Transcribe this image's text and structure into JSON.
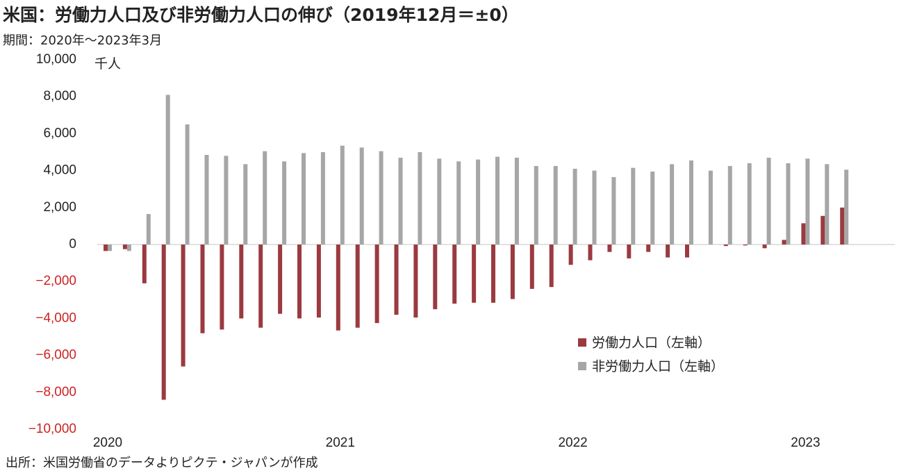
{
  "title": "米国：労働力人口及び非労働力人口の伸び（2019年12月＝±0）",
  "subtitle": "期間：2020年～2023年3月",
  "source": "出所：米国労働省のデータよりピクテ・ジャパンが作成",
  "colors": {
    "labor": "#9b3a40",
    "nonlabor": "#a6a6a6",
    "negative_tick": "#cc2222"
  },
  "chart_data": {
    "type": "bar",
    "unit_label": "千人",
    "ylim": [
      -10000,
      10000
    ],
    "yticks": [
      10000,
      8000,
      6000,
      4000,
      2000,
      0,
      -2000,
      -4000,
      -6000,
      -8000,
      -10000
    ],
    "ytick_labels": [
      "10,000",
      "8,000",
      "6,000",
      "4,000",
      "2,000",
      "0",
      "−2,000",
      "−4,000",
      "−6,000",
      "−8,000",
      "−10,000"
    ],
    "xtick_labels": [
      "2020",
      "2021",
      "2022",
      "2023"
    ],
    "legend_position": "lower-right",
    "categories": [
      "2020-01",
      "2020-02",
      "2020-03",
      "2020-04",
      "2020-05",
      "2020-06",
      "2020-07",
      "2020-08",
      "2020-09",
      "2020-10",
      "2020-11",
      "2020-12",
      "2021-01",
      "2021-02",
      "2021-03",
      "2021-04",
      "2021-05",
      "2021-06",
      "2021-07",
      "2021-08",
      "2021-09",
      "2021-10",
      "2021-11",
      "2021-12",
      "2022-01",
      "2022-02",
      "2022-03",
      "2022-04",
      "2022-05",
      "2022-06",
      "2022-07",
      "2022-08",
      "2022-09",
      "2022-10",
      "2022-11",
      "2022-12",
      "2023-01",
      "2023-02",
      "2023-03"
    ],
    "series": [
      {
        "name": "労働力人口（左軸）",
        "values": [
          -350,
          -250,
          -2100,
          -8400,
          -6600,
          -4800,
          -4600,
          -4000,
          -4500,
          -3750,
          -4000,
          -3950,
          -4650,
          -4500,
          -4250,
          -3800,
          -3950,
          -3500,
          -3200,
          -3150,
          -3150,
          -2950,
          -2400,
          -2300,
          -1100,
          -850,
          -400,
          -750,
          -400,
          -700,
          -700,
          0,
          -80,
          -50,
          -200,
          250,
          1150,
          1550,
          2000
        ]
      },
      {
        "name": "非労働力人口（左軸）",
        "values": [
          -350,
          -350,
          1650,
          8100,
          6500,
          4850,
          4800,
          4350,
          5050,
          4500,
          4950,
          5000,
          5350,
          5250,
          5050,
          4700,
          5000,
          4650,
          4500,
          4600,
          4750,
          4700,
          4250,
          4250,
          4100,
          4000,
          3650,
          4150,
          3950,
          4350,
          4550,
          4000,
          4250,
          4400,
          4700,
          4400,
          4650,
          4350,
          4050
        ]
      }
    ]
  }
}
